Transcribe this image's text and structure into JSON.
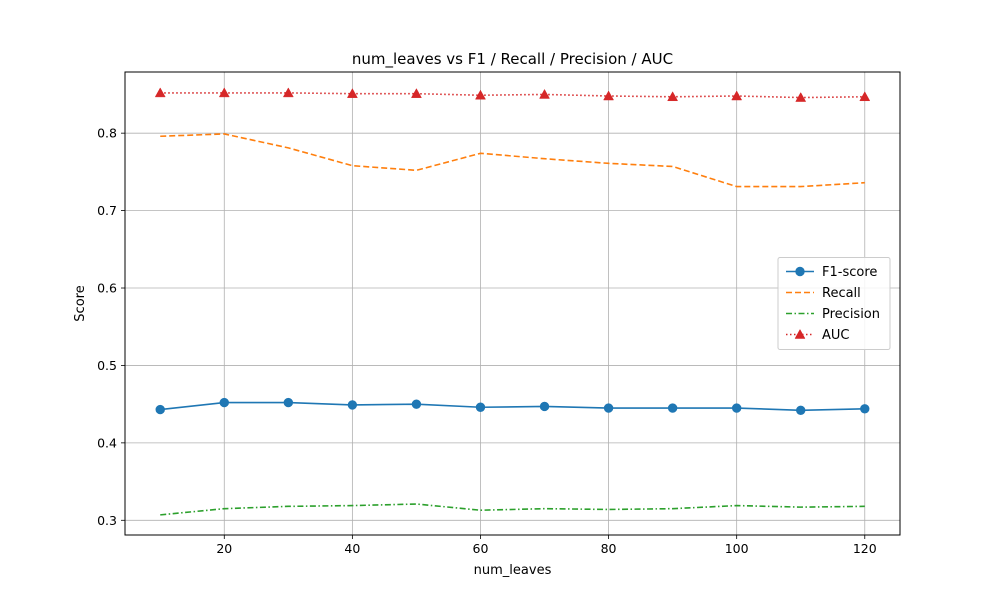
{
  "chart_data": {
    "type": "line",
    "title": "num_leaves vs F1 / Recall / Precision / AUC",
    "xlabel": "num_leaves",
    "ylabel": "Score",
    "x": [
      10,
      20,
      30,
      40,
      50,
      60,
      70,
      80,
      90,
      100,
      110,
      120
    ],
    "xlim": [
      4.5,
      125.5
    ],
    "ylim": [
      0.281,
      0.879
    ],
    "xticks": [
      20,
      40,
      60,
      80,
      100,
      120
    ],
    "yticks": [
      0.3,
      0.4,
      0.5,
      0.6,
      0.7,
      0.8
    ],
    "xtick_labels": [
      "20",
      "40",
      "60",
      "80",
      "100",
      "120"
    ],
    "ytick_labels": [
      "0.3",
      "0.4",
      "0.5",
      "0.6",
      "0.7",
      "0.8"
    ],
    "grid": true,
    "legend_position": "center-right",
    "series": [
      {
        "name": "F1-score",
        "color": "#1f77b4",
        "linestyle": "solid",
        "marker": "circle",
        "values": [
          0.443,
          0.452,
          0.452,
          0.449,
          0.45,
          0.446,
          0.447,
          0.445,
          0.445,
          0.445,
          0.442,
          0.444
        ]
      },
      {
        "name": "Recall",
        "color": "#ff7f0e",
        "linestyle": "dashed",
        "marker": "none",
        "values": [
          0.796,
          0.799,
          0.781,
          0.758,
          0.752,
          0.774,
          0.767,
          0.761,
          0.757,
          0.731,
          0.731,
          0.736
        ]
      },
      {
        "name": "Precision",
        "color": "#2ca02c",
        "linestyle": "dashdot",
        "marker": "none",
        "values": [
          0.307,
          0.315,
          0.318,
          0.319,
          0.321,
          0.313,
          0.315,
          0.314,
          0.315,
          0.319,
          0.317,
          0.318
        ]
      },
      {
        "name": "AUC",
        "color": "#d62728",
        "linestyle": "dotted",
        "marker": "triangle",
        "values": [
          0.852,
          0.852,
          0.852,
          0.851,
          0.851,
          0.849,
          0.85,
          0.848,
          0.847,
          0.848,
          0.846,
          0.847
        ]
      }
    ]
  }
}
